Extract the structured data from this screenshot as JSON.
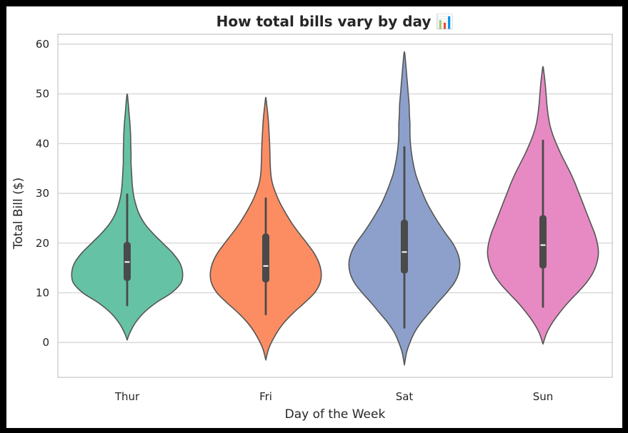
{
  "chart_data": {
    "type": "violin",
    "title": "How total bills vary by day 📊",
    "xlabel": "Day of the Week",
    "ylabel": "Total Bill ($)",
    "ylim": [
      -7,
      62
    ],
    "yticks": [
      0,
      10,
      20,
      30,
      40,
      50,
      60
    ],
    "grid": true,
    "legend": "none",
    "categories": [
      "Thur",
      "Fri",
      "Sat",
      "Sun"
    ],
    "colors": [
      "#66c2a5",
      "#fc8d62",
      "#8da0cb",
      "#e78ac3"
    ],
    "violins": [
      {
        "category": "Thur",
        "min_extent": 0.5,
        "max_extent": 50,
        "whisker_low": 7.5,
        "q1": 12.4,
        "median": 16.2,
        "q3": 20.2,
        "whisker_high": 29.8,
        "density": [
          [
            0.5,
            0.0
          ],
          [
            2,
            0.05
          ],
          [
            4,
            0.15
          ],
          [
            6,
            0.3
          ],
          [
            8,
            0.52
          ],
          [
            10,
            0.8
          ],
          [
            12,
            0.97
          ],
          [
            14,
            1.0
          ],
          [
            16,
            0.95
          ],
          [
            18,
            0.82
          ],
          [
            20,
            0.64
          ],
          [
            22,
            0.46
          ],
          [
            24,
            0.31
          ],
          [
            26,
            0.21
          ],
          [
            28,
            0.15
          ],
          [
            30,
            0.11
          ],
          [
            32,
            0.09
          ],
          [
            34,
            0.08
          ],
          [
            36,
            0.07
          ],
          [
            38,
            0.07
          ],
          [
            40,
            0.065
          ],
          [
            42,
            0.06
          ],
          [
            44,
            0.05
          ],
          [
            46,
            0.035
          ],
          [
            48,
            0.02
          ],
          [
            50,
            0.0
          ]
        ]
      },
      {
        "category": "Fri",
        "min_extent": -3.5,
        "max_extent": 49.3,
        "whisker_low": 5.7,
        "q1": 12.1,
        "median": 15.4,
        "q3": 21.9,
        "whisker_high": 29.0,
        "density": [
          [
            -3.5,
            0.0
          ],
          [
            -1,
            0.06
          ],
          [
            2,
            0.2
          ],
          [
            4,
            0.33
          ],
          [
            6,
            0.5
          ],
          [
            8,
            0.7
          ],
          [
            10,
            0.88
          ],
          [
            12,
            0.98
          ],
          [
            14,
            1.0
          ],
          [
            16,
            0.96
          ],
          [
            18,
            0.87
          ],
          [
            20,
            0.74
          ],
          [
            22,
            0.6
          ],
          [
            24,
            0.47
          ],
          [
            26,
            0.36
          ],
          [
            28,
            0.26
          ],
          [
            30,
            0.18
          ],
          [
            32,
            0.12
          ],
          [
            34,
            0.09
          ],
          [
            36,
            0.08
          ],
          [
            38,
            0.075
          ],
          [
            40,
            0.07
          ],
          [
            42,
            0.06
          ],
          [
            44,
            0.05
          ],
          [
            46,
            0.035
          ],
          [
            48,
            0.015
          ],
          [
            49.3,
            0.0
          ]
        ]
      },
      {
        "category": "Sat",
        "min_extent": -4.5,
        "max_extent": 58.5,
        "whisker_low": 3.0,
        "q1": 13.9,
        "median": 18.2,
        "q3": 24.7,
        "whisker_high": 39.3,
        "density": [
          [
            -4.5,
            0.0
          ],
          [
            -2,
            0.04
          ],
          [
            0,
            0.1
          ],
          [
            2,
            0.18
          ],
          [
            4,
            0.3
          ],
          [
            6,
            0.45
          ],
          [
            8,
            0.6
          ],
          [
            10,
            0.76
          ],
          [
            12,
            0.9
          ],
          [
            14,
            0.98
          ],
          [
            16,
            1.0
          ],
          [
            18,
            0.96
          ],
          [
            20,
            0.87
          ],
          [
            22,
            0.74
          ],
          [
            24,
            0.62
          ],
          [
            26,
            0.51
          ],
          [
            28,
            0.41
          ],
          [
            30,
            0.33
          ],
          [
            32,
            0.26
          ],
          [
            34,
            0.2
          ],
          [
            36,
            0.16
          ],
          [
            38,
            0.13
          ],
          [
            40,
            0.11
          ],
          [
            42,
            0.1
          ],
          [
            44,
            0.1
          ],
          [
            46,
            0.09
          ],
          [
            48,
            0.085
          ],
          [
            50,
            0.07
          ],
          [
            52,
            0.055
          ],
          [
            54,
            0.04
          ],
          [
            56,
            0.025
          ],
          [
            58.5,
            0.0
          ]
        ]
      },
      {
        "category": "Sun",
        "min_extent": -0.3,
        "max_extent": 55.5,
        "whisker_low": 7.2,
        "q1": 14.9,
        "median": 19.6,
        "q3": 25.6,
        "whisker_high": 40.6,
        "density": [
          [
            -0.3,
            0.0
          ],
          [
            2,
            0.07
          ],
          [
            4,
            0.17
          ],
          [
            6,
            0.3
          ],
          [
            8,
            0.45
          ],
          [
            10,
            0.62
          ],
          [
            12,
            0.78
          ],
          [
            14,
            0.9
          ],
          [
            16,
            0.97
          ],
          [
            18,
            1.0
          ],
          [
            20,
            0.98
          ],
          [
            22,
            0.93
          ],
          [
            24,
            0.86
          ],
          [
            26,
            0.79
          ],
          [
            28,
            0.72
          ],
          [
            30,
            0.65
          ],
          [
            32,
            0.58
          ],
          [
            34,
            0.5
          ],
          [
            36,
            0.41
          ],
          [
            38,
            0.32
          ],
          [
            40,
            0.24
          ],
          [
            42,
            0.17
          ],
          [
            44,
            0.12
          ],
          [
            46,
            0.09
          ],
          [
            48,
            0.07
          ],
          [
            50,
            0.055
          ],
          [
            52,
            0.04
          ],
          [
            54,
            0.02
          ],
          [
            55.5,
            0.0
          ]
        ]
      }
    ]
  }
}
